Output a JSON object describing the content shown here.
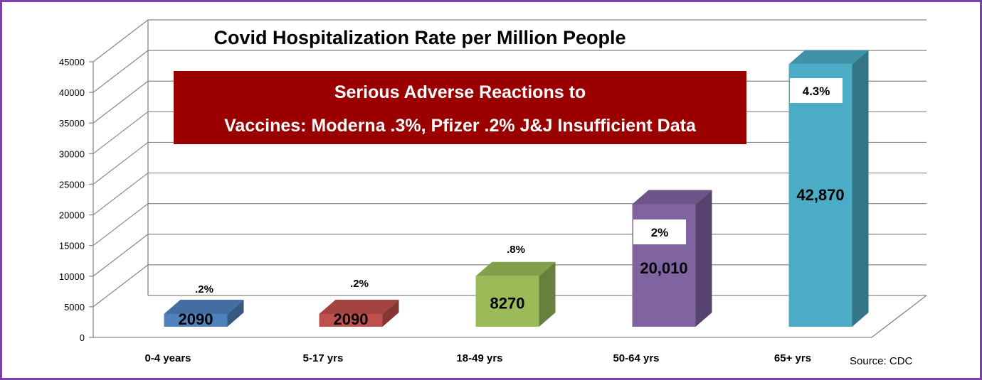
{
  "chart_data": {
    "type": "bar",
    "title": "Covid Hospitalization Rate per Million People",
    "categories": [
      "0-4 years",
      "5-17 yrs",
      "18-49 yrs",
      "50-64 yrs",
      "65+ yrs"
    ],
    "values": [
      2090,
      2090,
      8270,
      20010,
      42870
    ],
    "value_labels": [
      "2090",
      "2090",
      "8270",
      "20,010",
      "42,870"
    ],
    "percent_labels": [
      ".2%",
      ".2%",
      ".8%",
      "2%",
      "4.3%"
    ],
    "y_ticks": [
      0,
      5000,
      10000,
      15000,
      20000,
      25000,
      30000,
      35000,
      40000,
      45000
    ],
    "ylim": [
      0,
      45000
    ],
    "grid": true,
    "three_d": true,
    "colors": {
      "bars": [
        "#4f81bd",
        "#c0504d",
        "#9bbb59",
        "#8064a2",
        "#4bacc6"
      ],
      "frame": "#7b3fa5",
      "banner": "#9b0000"
    }
  },
  "banner": {
    "line1": "Serious Adverse Reactions to",
    "line2": "Vaccines: Moderna .3%, Pfizer .2% J&J Insufficient Data"
  },
  "source": "Source: CDC"
}
